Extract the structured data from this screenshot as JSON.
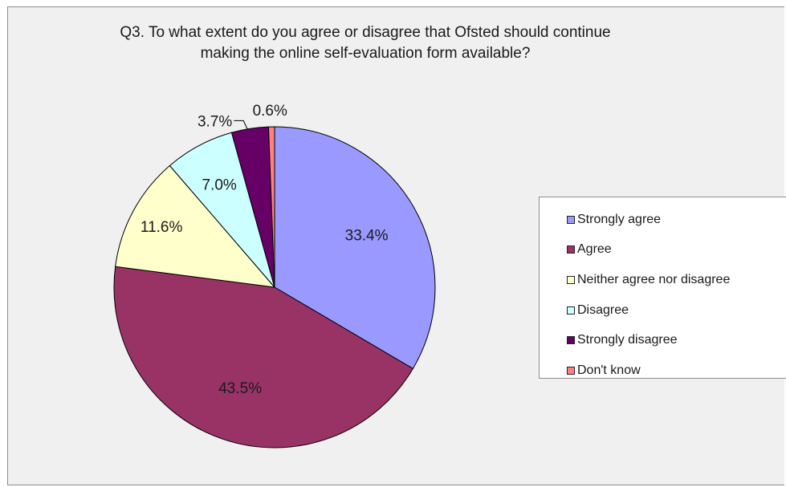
{
  "chart_data": {
    "type": "pie",
    "title_lines": [
      "Q3. To what extent do you agree or disagree that Ofsted should continue",
      "making the online self-evaluation form available?"
    ],
    "categories": [
      "Strongly agree",
      "Agree",
      "Neither agree nor disagree",
      "Disagree",
      "Strongly disagree",
      "Don't know"
    ],
    "values": [
      33.4,
      43.5,
      11.6,
      7.0,
      3.7,
      0.6
    ],
    "labels": [
      "33.4%",
      "43.5%",
      "11.6%",
      "7.0%",
      "3.7%",
      "0.6%"
    ],
    "colors": [
      "#9999ff",
      "#993366",
      "#ffffcc",
      "#ccffff",
      "#660066",
      "#ff8080"
    ],
    "start_angle": "12 o'clock",
    "direction": "clockwise",
    "legend_position": "right"
  }
}
